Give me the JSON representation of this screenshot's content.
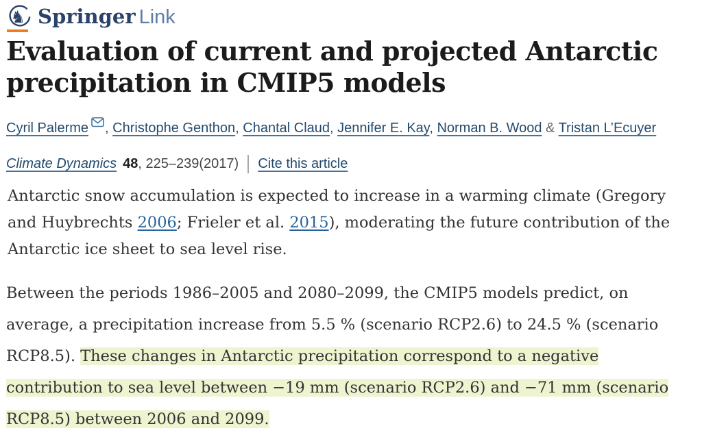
{
  "brand": {
    "primary": "Springer",
    "secondary": "Link",
    "icon": "springer-horse-icon",
    "colors": {
      "orange_bar": "#f47a1f",
      "primary_navy": "#2b4368",
      "secondary_blue": "#5f7ea6"
    }
  },
  "article": {
    "title": "Evaluation of current and projected Antarctic precipitation in CMIP5 models",
    "authors": [
      "Cyril Palerme",
      "Christophe Genthon",
      "Chantal Claud",
      "Jennifer E. Kay",
      "Norman B. Wood",
      "Tristan L’Ecuyer"
    ],
    "author_separator": ", ",
    "author_last_separator": " & ",
    "corresponding_author_icon": "email-envelope-icon",
    "journal": {
      "name": "Climate Dynamics",
      "volume": "48",
      "pages_year": ", 225–239(2017)",
      "cite_link_label": "Cite this article"
    },
    "abstract_segments": [
      {
        "t": "Antarctic snow accumulation is expected to increase in a warming climate (Gregory and Huybrechts ",
        "s": "plain"
      },
      {
        "t": "2006",
        "s": "link"
      },
      {
        "t": "; Frieler et al. ",
        "s": "plain"
      },
      {
        "t": "2015",
        "s": "link"
      },
      {
        "t": "), moderating the future contribution of the Antarctic ice sheet to sea level rise.",
        "s": "plain"
      }
    ],
    "body_segments": [
      {
        "t": "Between the periods 1986–2005 and 2080–2099, the CMIP5 models predict, on average, a precipitation increase from 5.5 % (scenario RCP2.6) to 24.5 % (scenario RCP8.5). ",
        "s": "plain"
      },
      {
        "t": "These changes in Antarctic precipitation correspond to a negative contribution to sea level between −19 mm (scenario RCP2.6) and −71 mm (scenario RCP8.5) between 2006 and 2099.",
        "s": "highlight"
      }
    ]
  },
  "colors": {
    "author_link": "#234b6e",
    "inline_link": "#27639e",
    "highlight_bg": "#eef3d0",
    "title_text": "#1b1b1b",
    "body_text": "#333333"
  }
}
